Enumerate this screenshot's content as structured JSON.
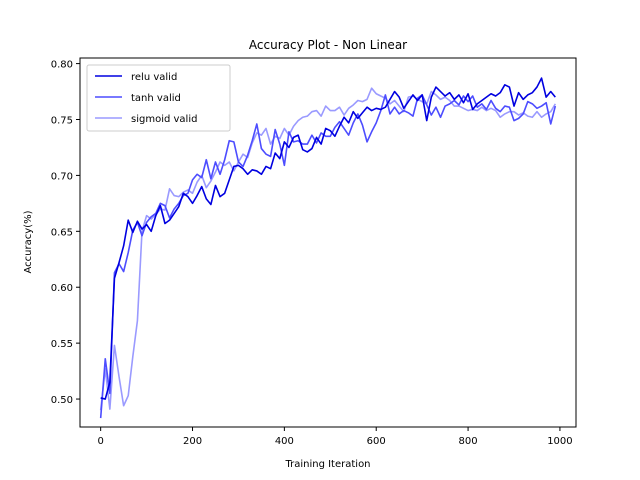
{
  "chart_data": {
    "type": "line",
    "title": "Accuracy Plot - Non Linear",
    "xlabel": "Training Iteration",
    "ylabel": "Accuracy(%)",
    "xlim": [
      -45,
      1035
    ],
    "ylim": [
      0.475,
      0.805
    ],
    "xticks": [
      0,
      200,
      400,
      600,
      800,
      1000
    ],
    "yticks": [
      0.5,
      0.55,
      0.6,
      0.65,
      0.7,
      0.75,
      0.8
    ],
    "xtick_labels": [
      "0",
      "200",
      "400",
      "600",
      "800",
      "1000"
    ],
    "ytick_labels": [
      "0.50",
      "0.55",
      "0.60",
      "0.65",
      "0.70",
      "0.75",
      "0.80"
    ],
    "grid": false,
    "legend_position": "top-left",
    "x": [
      0,
      10,
      20,
      30,
      40,
      50,
      60,
      70,
      80,
      90,
      100,
      110,
      120,
      130,
      140,
      150,
      160,
      170,
      180,
      190,
      200,
      210,
      220,
      230,
      240,
      250,
      260,
      270,
      280,
      290,
      300,
      310,
      320,
      330,
      340,
      350,
      360,
      370,
      380,
      390,
      400,
      410,
      420,
      430,
      440,
      450,
      460,
      470,
      480,
      490,
      500,
      510,
      520,
      530,
      540,
      550,
      560,
      570,
      580,
      590,
      600,
      610,
      620,
      630,
      640,
      650,
      660,
      670,
      680,
      690,
      700,
      710,
      720,
      730,
      740,
      750,
      760,
      770,
      780,
      790,
      800,
      810,
      820,
      830,
      840,
      850,
      860,
      870,
      880,
      890,
      900,
      910,
      920,
      930,
      940,
      950,
      960,
      970,
      980,
      990
    ],
    "series": [
      {
        "name": "relu valid",
        "color": "#0000e0",
        "values": [
          0.501,
          0.5,
          0.515,
          0.608,
          0.622,
          0.637,
          0.66,
          0.649,
          0.659,
          0.652,
          0.656,
          0.65,
          0.664,
          0.673,
          0.657,
          0.66,
          0.666,
          0.672,
          0.684,
          0.681,
          0.675,
          0.682,
          0.69,
          0.679,
          0.674,
          0.691,
          0.681,
          0.684,
          0.696,
          0.708,
          0.709,
          0.706,
          0.701,
          0.705,
          0.704,
          0.701,
          0.708,
          0.706,
          0.72,
          0.715,
          0.73,
          0.725,
          0.734,
          0.736,
          0.723,
          0.721,
          0.724,
          0.734,
          0.728,
          0.742,
          0.74,
          0.735,
          0.744,
          0.752,
          0.747,
          0.757,
          0.751,
          0.756,
          0.761,
          0.758,
          0.76,
          0.759,
          0.761,
          0.768,
          0.775,
          0.77,
          0.76,
          0.766,
          0.772,
          0.767,
          0.772,
          0.749,
          0.77,
          0.779,
          0.775,
          0.771,
          0.774,
          0.768,
          0.772,
          0.765,
          0.773,
          0.759,
          0.764,
          0.767,
          0.77,
          0.773,
          0.771,
          0.774,
          0.781,
          0.779,
          0.762,
          0.774,
          0.768,
          0.772,
          0.774,
          0.779,
          0.787,
          0.77,
          0.775,
          0.77
        ]
      },
      {
        "name": "tanh valid",
        "color": "#4d4dff",
        "values": [
          0.483,
          0.536,
          0.505,
          0.613,
          0.621,
          0.614,
          0.631,
          0.651,
          0.658,
          0.646,
          0.658,
          0.663,
          0.666,
          0.675,
          0.673,
          0.662,
          0.67,
          0.675,
          0.682,
          0.684,
          0.696,
          0.701,
          0.698,
          0.714,
          0.697,
          0.712,
          0.701,
          0.714,
          0.731,
          0.73,
          0.712,
          0.708,
          0.718,
          0.731,
          0.746,
          0.724,
          0.719,
          0.717,
          0.741,
          0.728,
          0.709,
          0.739,
          0.73,
          0.731,
          0.728,
          0.728,
          0.736,
          0.729,
          0.738,
          0.735,
          0.735,
          0.743,
          0.748,
          0.742,
          0.736,
          0.747,
          0.755,
          0.745,
          0.73,
          0.739,
          0.747,
          0.758,
          0.772,
          0.755,
          0.761,
          0.755,
          0.758,
          0.756,
          0.753,
          0.769,
          0.772,
          0.763,
          0.754,
          0.761,
          0.752,
          0.762,
          0.764,
          0.767,
          0.763,
          0.771,
          0.766,
          0.771,
          0.761,
          0.764,
          0.759,
          0.767,
          0.76,
          0.757,
          0.762,
          0.761,
          0.749,
          0.751,
          0.755,
          0.766,
          0.764,
          0.76,
          0.762,
          0.765,
          0.746,
          0.762
        ]
      },
      {
        "name": "sigmoid valid",
        "color": "#9a9aff",
        "values": [
          0.49,
          0.527,
          0.491,
          0.548,
          0.52,
          0.494,
          0.503,
          0.538,
          0.57,
          0.65,
          0.664,
          0.661,
          0.665,
          0.67,
          0.669,
          0.688,
          0.682,
          0.681,
          0.685,
          0.687,
          0.684,
          0.694,
          0.7,
          0.689,
          0.695,
          0.703,
          0.712,
          0.709,
          0.712,
          0.704,
          0.712,
          0.719,
          0.716,
          0.729,
          0.738,
          0.736,
          0.742,
          0.728,
          0.735,
          0.733,
          0.742,
          0.736,
          0.744,
          0.749,
          0.752,
          0.753,
          0.757,
          0.758,
          0.753,
          0.762,
          0.758,
          0.758,
          0.761,
          0.754,
          0.76,
          0.763,
          0.767,
          0.766,
          0.768,
          0.778,
          0.773,
          0.771,
          0.769,
          0.764,
          0.767,
          0.762,
          0.757,
          0.77,
          0.771,
          0.768,
          0.766,
          0.764,
          0.775,
          0.772,
          0.768,
          0.77,
          0.767,
          0.762,
          0.762,
          0.76,
          0.758,
          0.759,
          0.758,
          0.761,
          0.758,
          0.76,
          0.758,
          0.752,
          0.755,
          0.757,
          0.757,
          0.754,
          0.756,
          0.753,
          0.752,
          0.757,
          0.752,
          0.755,
          0.757,
          0.764
        ]
      }
    ]
  }
}
